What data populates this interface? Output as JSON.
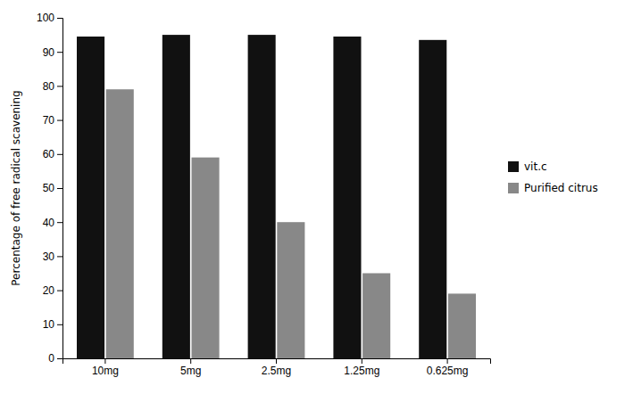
{
  "chart_data": {
    "type": "bar",
    "categories": [
      "10mg",
      "5mg",
      "2.5mg",
      "1.25mg",
      "0.625mg"
    ],
    "series": [
      {
        "name": "vit.c",
        "color": "#111111",
        "values": [
          94.5,
          95.0,
          95.0,
          94.5,
          93.5
        ]
      },
      {
        "name": "Purified citrus",
        "color": "#888888",
        "values": [
          79.0,
          59.0,
          40.0,
          25.0,
          19.0
        ]
      }
    ],
    "ylabel": "Percentage of free radical scavening",
    "ylim": [
      0,
      100
    ],
    "yticks": [
      0,
      10,
      20,
      30,
      40,
      50,
      60,
      70,
      80,
      90,
      100
    ],
    "grid": false,
    "legend": "right"
  }
}
